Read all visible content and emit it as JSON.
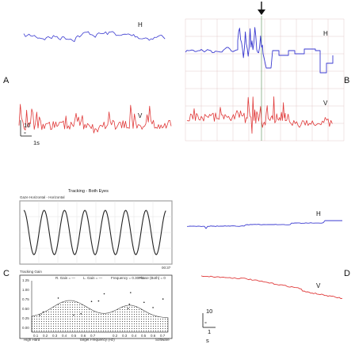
{
  "panels": {
    "A": {
      "label": "A",
      "h_label": "H",
      "v_label": "V",
      "scale_deg": "10",
      "scale_deg_unit": "°",
      "scale_time": "1s"
    },
    "B": {
      "label": "B",
      "h_label": "H",
      "v_label": "V"
    },
    "C": {
      "label": "C",
      "tracking_title": "Tracking - Both Eyes",
      "tracking_axis_label": "Gaze Horizontal - Horizontal",
      "gain_axis_label": "Tracking Gain",
      "gain_legend": [
        "R. Gain = —",
        "L. Gain = —",
        "Frequency = 0.30 Hz",
        "Phase (Both) = 0"
      ],
      "gain_xlabel": "Target Frequency (Hz)",
      "gain_corner_left": "High Hard",
      "gain_corner_right": "Software",
      "gain_y_ticks": [
        "1.25",
        "1.00",
        "0.75",
        "0.50",
        "0.25",
        "0.00"
      ],
      "gain_x_ticks": [
        "0.1",
        "0.2",
        "0.3",
        "0.4",
        "0.5",
        "0.6",
        "0.7"
      ],
      "gain_x_ticks_right": [
        "0.2",
        "0.3",
        "0.4",
        "0.5",
        "0.6",
        "0.7"
      ],
      "tracking_corner": "00:37"
    },
    "D": {
      "label": "D",
      "h_label": "H",
      "v_label": "V",
      "scale_deg": "10",
      "scale_deg_unit": "°",
      "scale_time": "1",
      "scale_time_unit": "s"
    }
  },
  "colors": {
    "horizontal": "#3a3ad0",
    "vertical": "#e03a3a",
    "grid": "#e3c9c9",
    "axis": "#333333",
    "sine": "#222222",
    "hatch": "#888888"
  },
  "chart_data": [
    {
      "panel": "A",
      "type": "line",
      "series": [
        {
          "name": "H",
          "kind": "saccadic-noise"
        },
        {
          "name": "V",
          "kind": "spiky-noise"
        }
      ],
      "grid": false
    },
    {
      "panel": "B",
      "type": "line",
      "series": [
        {
          "name": "H",
          "kind": "noise-then-steps"
        },
        {
          "name": "V",
          "kind": "spiky-noise"
        }
      ],
      "grid": true
    },
    {
      "panel": "C-tracking",
      "type": "line",
      "series": [
        {
          "kind": "sine",
          "cycles": 7
        }
      ],
      "grid": true
    },
    {
      "panel": "C-gain",
      "type": "area",
      "grid": false
    },
    {
      "panel": "D",
      "type": "line",
      "series": [
        {
          "name": "H",
          "kind": "flat-step"
        },
        {
          "name": "V",
          "kind": "slow-drift"
        }
      ],
      "grid": false
    }
  ]
}
